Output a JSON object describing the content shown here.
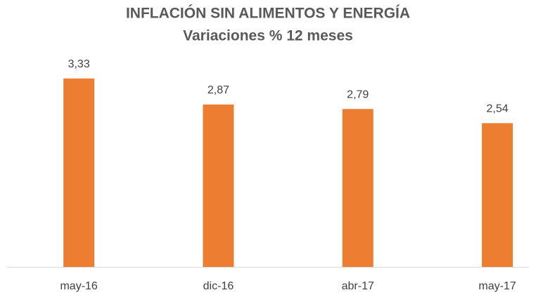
{
  "chart_data": {
    "type": "bar",
    "title": "INFLACIÓN SIN ALIMENTOS Y ENERGÍA",
    "subtitle": "Variaciones % 12 meses",
    "categories": [
      "may-16",
      "dic-16",
      "abr-17",
      "may-17"
    ],
    "values": [
      3.33,
      2.87,
      2.79,
      2.54
    ],
    "value_labels": [
      "3,33",
      "2,87",
      "2,79",
      "2,54"
    ],
    "color": "#ed7d31",
    "ylim": [
      0,
      3.5
    ]
  }
}
